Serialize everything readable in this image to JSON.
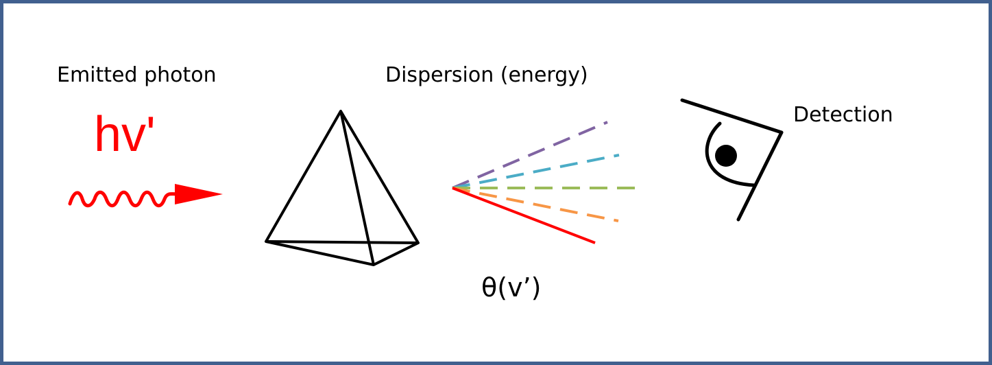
{
  "labels": {
    "emitted_photon": "Emitted photon",
    "hv": "hv'",
    "dispersion": "Dispersion (energy)",
    "detection": "Detection",
    "theta": "θ(v’)"
  },
  "colors": {
    "frame_border": "#41608f",
    "photon": "#ff0000",
    "ray_purple": "#8064a2",
    "ray_blue": "#4bacc6",
    "ray_green": "#9bbb59",
    "ray_orange": "#f79646",
    "ray_red": "#ff0000",
    "outline": "#000000"
  },
  "icons": [
    "wavy-photon-arrow-icon",
    "prism-icon",
    "eye-icon"
  ]
}
